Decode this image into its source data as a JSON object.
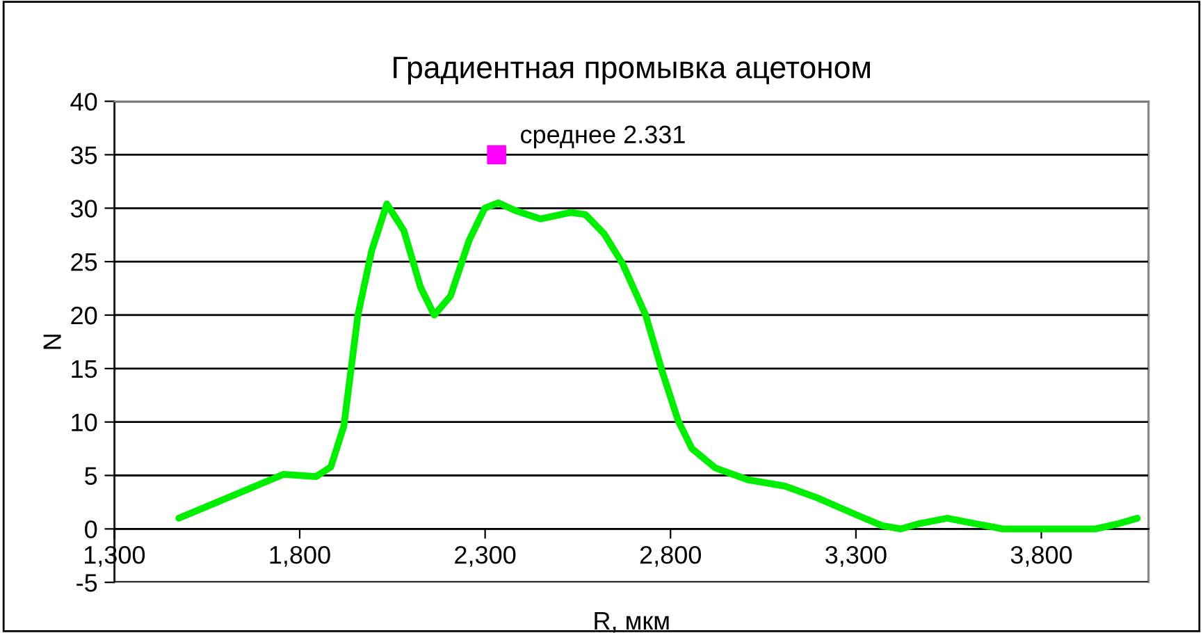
{
  "chart_data": {
    "type": "line",
    "title": "Градиентная промывка ацетоном",
    "xlabel": "R, мкм",
    "ylabel": "N",
    "xlim": [
      1300,
      4090
    ],
    "ylim": [
      -5,
      40
    ],
    "xticks": [
      {
        "value": 1300,
        "label": "1,300"
      },
      {
        "value": 1800,
        "label": "1,800"
      },
      {
        "value": 2300,
        "label": "2,300"
      },
      {
        "value": 2800,
        "label": "2,800"
      },
      {
        "value": 3300,
        "label": "3,300"
      },
      {
        "value": 3800,
        "label": "3,800"
      }
    ],
    "yticks": [
      -5,
      0,
      5,
      10,
      15,
      20,
      25,
      30,
      35,
      40
    ],
    "grid": "y",
    "legend": false,
    "annotations": [
      {
        "text": "среднее 2.331",
        "x": 2331,
        "y": 35
      }
    ],
    "series": [
      {
        "color": "#00ee00",
        "marker": "none",
        "line_style": "solid",
        "x": [
          1474,
          1756,
          1844,
          1884,
          1919,
          1957,
          1994,
          2035,
          2081,
          2126,
          2163,
          2207,
          2257,
          2299,
          2336,
          2380,
          2449,
          2530,
          2571,
          2621,
          2671,
          2733,
          2777,
          2821,
          2858,
          2921,
          3008,
          3109,
          3196,
          3296,
          3371,
          3421,
          3471,
          3546,
          3621,
          3696,
          3822,
          3947,
          4009,
          4059
        ],
        "values": [
          1,
          5.1,
          4.9,
          5.8,
          9.6,
          20,
          26,
          30.4,
          27.9,
          22.6,
          20,
          21.8,
          27,
          30,
          30.5,
          29.8,
          29,
          29.6,
          29.4,
          27.6,
          24.8,
          20,
          14.8,
          10.1,
          7.5,
          5.7,
          4.6,
          4,
          2.9,
          1.4,
          0.3,
          0,
          0.5,
          1,
          0.5,
          0,
          0,
          0,
          0.5,
          1
        ]
      },
      {
        "type": "scatter",
        "color": "#ff00ff",
        "marker": "square",
        "x": [
          2331
        ],
        "values": [
          35
        ]
      }
    ]
  }
}
